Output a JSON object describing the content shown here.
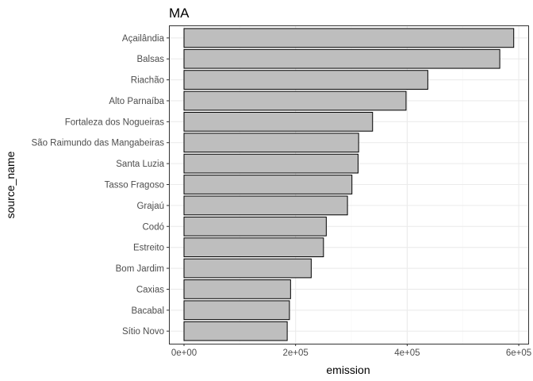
{
  "chart_data": {
    "type": "bar",
    "orientation": "horizontal",
    "title": "MA",
    "xlabel": "emission",
    "ylabel": "source_name",
    "categories": [
      "Açailândia",
      "Balsas",
      "Riachão",
      "Alto Parnaíba",
      "Fortaleza dos Nogueiras",
      "São Raimundo das Mangabeiras",
      "Santa Luzia",
      "Tasso Fragoso",
      "Grajaú",
      "Codó",
      "Estreito",
      "Bom Jardim",
      "Caxias",
      "Bacabal",
      "Sítio Novo"
    ],
    "values": [
      591000,
      566000,
      437000,
      398000,
      338000,
      313000,
      312000,
      301000,
      293000,
      255000,
      250000,
      228000,
      191000,
      189000,
      185000
    ],
    "xlim": [
      -27000,
      617000
    ],
    "xticks": [
      0,
      200000,
      400000,
      600000
    ],
    "xtick_labels": [
      "0e+00",
      "2e+05",
      "4e+05",
      "6e+05"
    ],
    "grid": true,
    "legend": "none",
    "colors": {
      "bar_fill": "#bebebe",
      "bar_stroke": "#000000",
      "grid_major": "#ebebeb",
      "grid_minor": "#f5f5f5",
      "panel_border": "#333333"
    }
  }
}
